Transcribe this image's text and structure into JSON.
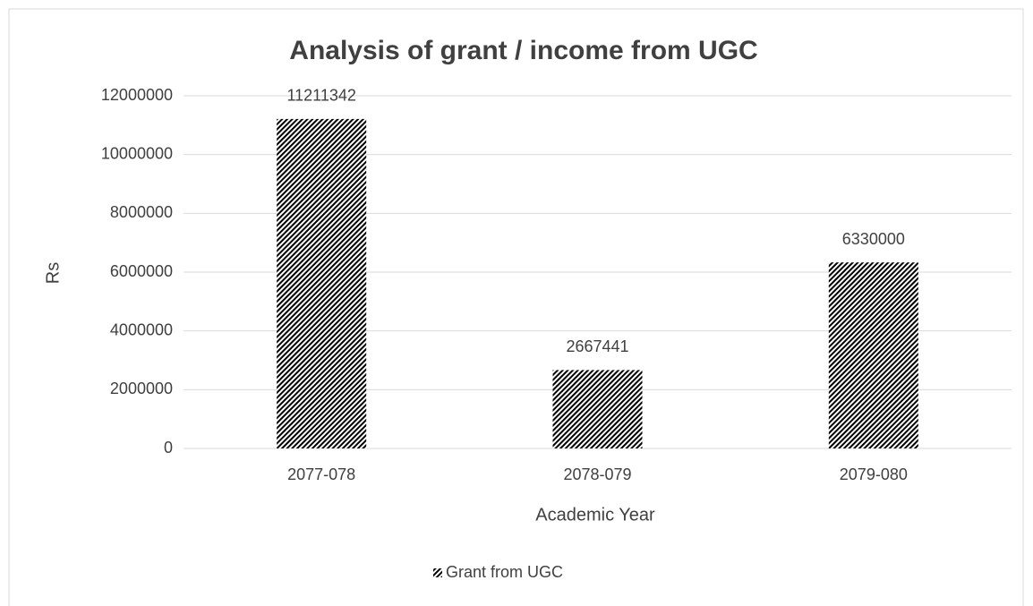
{
  "chart_data": {
    "type": "bar",
    "title": "Analysis of grant / income from UGC",
    "x_label": "Academic Year",
    "y_label": "Rs",
    "categories": [
      "2077-078",
      "2078-079",
      "2079-080"
    ],
    "series": [
      {
        "name": "Grant from UGC",
        "color": "#000000",
        "pattern": "diagonal",
        "values": [
          11211342,
          2667441,
          6330000
        ]
      }
    ],
    "ylim": [
      0,
      12000000
    ],
    "yticks": [
      0,
      2000000,
      4000000,
      6000000,
      8000000,
      10000000,
      12000000
    ],
    "grid": true,
    "legend": "bottom",
    "data_labels": true
  }
}
